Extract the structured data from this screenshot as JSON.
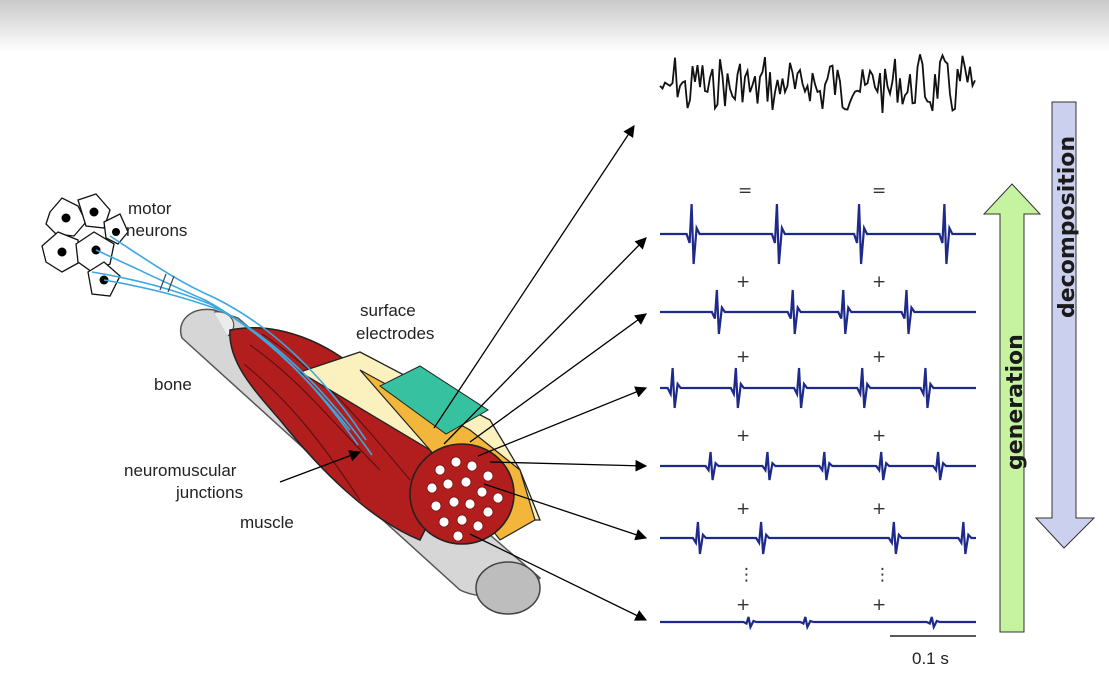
{
  "labels": {
    "motor_neurons_1": "motor",
    "motor_neurons_2": "neurons",
    "bone": "bone",
    "surface_electrodes_1": "surface",
    "surface_electrodes_2": "electrodes",
    "neuromuscular_junctions_1": "neuromuscular",
    "neuromuscular_junctions_2": "junctions",
    "muscle": "muscle",
    "generation": "generation",
    "decomposition": "decomposition",
    "scale_bar": "0.1 s"
  },
  "operators": {
    "equals": "=",
    "plus": "+",
    "ellipsis": "⋮"
  },
  "trains": [
    [
      0.1,
      0.37,
      0.63,
      0.9
    ],
    [
      0.18,
      0.42,
      0.58,
      0.78
    ],
    [
      0.04,
      0.24,
      0.44,
      0.64,
      0.84
    ],
    [
      0.16,
      0.34,
      0.52,
      0.7,
      0.88
    ],
    [
      0.12,
      0.32,
      0.74,
      0.96
    ],
    [
      0.28,
      0.46,
      0.86
    ]
  ],
  "colors": {
    "train": "#1e2a8a",
    "emg": "#111111",
    "fibers": "#3aa8e0",
    "muscle": "#b21e1e",
    "bone": "#d6d6d6",
    "fat": "#f2b63a",
    "skin": "#fbf1bf",
    "electrodes": "#36c2a0",
    "generation_arrow": "#c6f3a0",
    "decomposition_arrow": "#ccd0ef"
  }
}
